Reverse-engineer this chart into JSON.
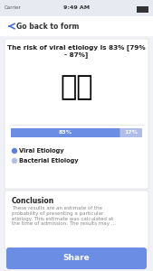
{
  "bg_color": "#f0f2f8",
  "status_bar_bg": "#e8eaf2",
  "nav_bar_text": "Go back to form",
  "card1_title": "The risk of viral etiology is 83% [79%\n- 87%]",
  "bar_viral_pct": 0.83,
  "bar_bacterial_pct": 0.17,
  "bar_viral_color": "#6b8de3",
  "bar_bacterial_color": "#b0bde8",
  "bar_viral_label": "83%",
  "bar_bacterial_label": "17%",
  "legend_viral": "Viral Etiology",
  "legend_bacterial": "Bacterial Etiology",
  "legend_viral_color": "#5b7ee0",
  "legend_bacterial_color": "#b0bde8",
  "conclusion_title": "Conclusion",
  "conclusion_text": "These results are an estimate of the\nprobability of presenting a particular\netiology. This estimate was calculated at\nthe time of admission. The results may ...",
  "share_btn_color": "#6b8de3",
  "share_btn_text": "Share",
  "share_btn_text_color": "#ffffff"
}
